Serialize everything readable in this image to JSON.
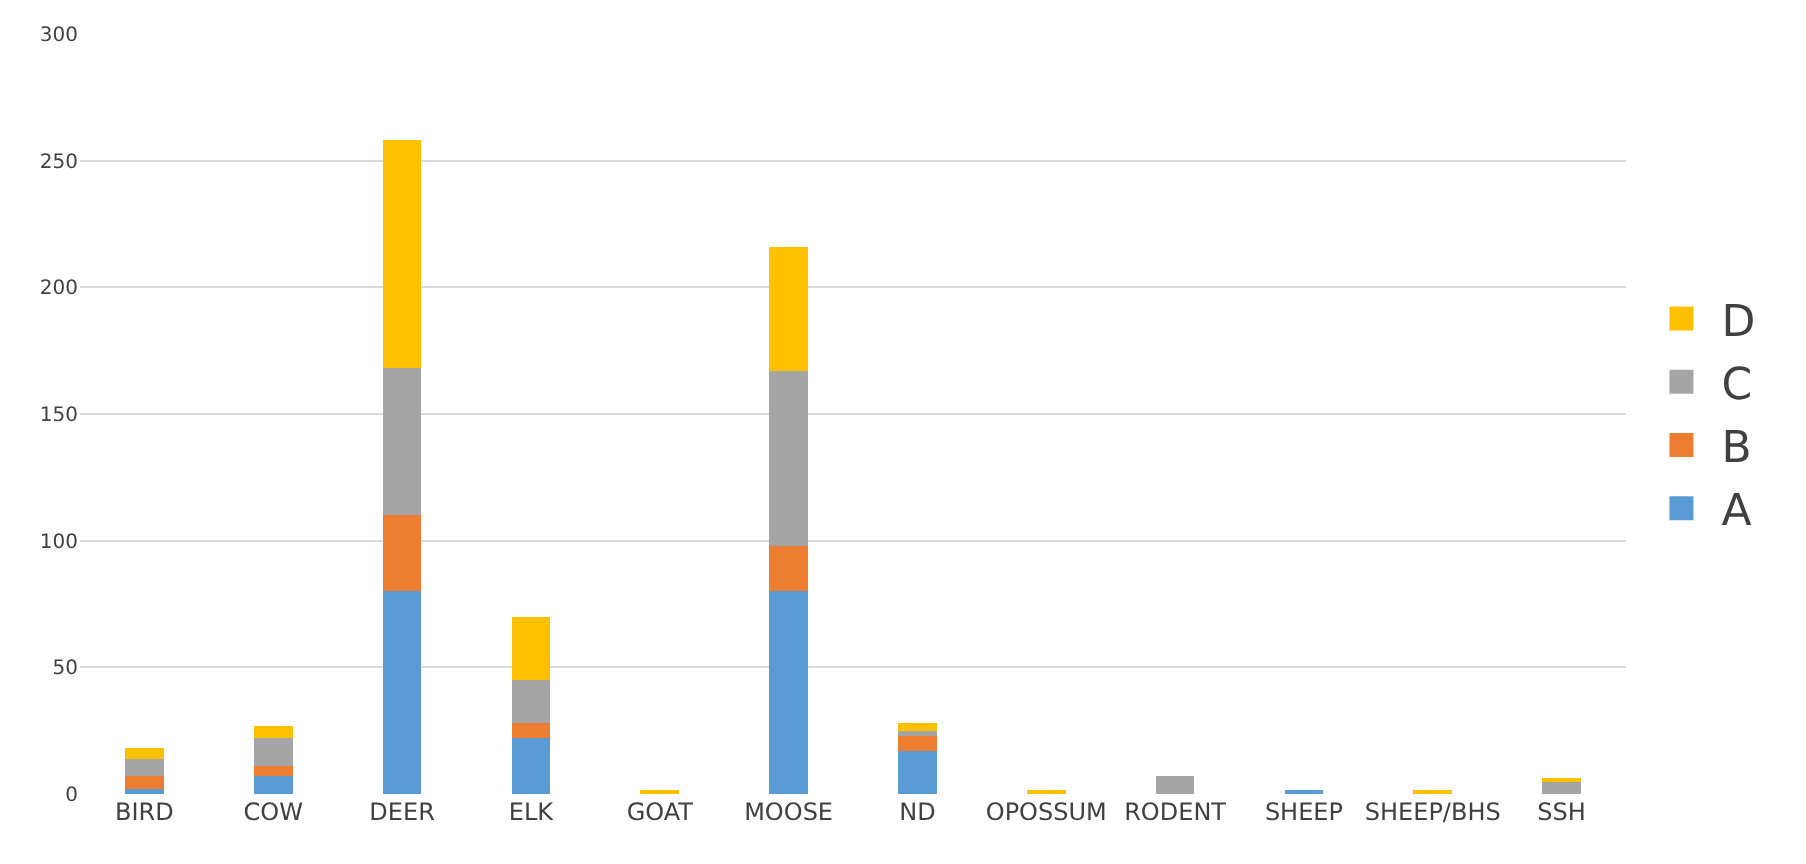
{
  "chart_data": {
    "type": "bar",
    "stacked": true,
    "categories": [
      "BIRD",
      "COW",
      "DEER",
      "ELK",
      "GOAT",
      "MOOSE",
      "ND",
      "OPOSSUM",
      "RODENT",
      "SHEEP",
      "SHEEP/BHS",
      "SSH"
    ],
    "series": [
      {
        "name": "A",
        "color": "#5b9bd5",
        "values": [
          2,
          7,
          80,
          22,
          null,
          80,
          17,
          null,
          null,
          1,
          null,
          null
        ]
      },
      {
        "name": "B",
        "color": "#ed7d31",
        "values": [
          5,
          4,
          30,
          6,
          null,
          18,
          6,
          null,
          null,
          null,
          null,
          null
        ]
      },
      {
        "name": "C",
        "color": "#a5a5a5",
        "values": [
          7,
          11,
          58,
          17,
          null,
          69,
          2,
          null,
          7,
          null,
          null,
          5
        ]
      },
      {
        "name": "D",
        "color": "#ffc000",
        "values": [
          4,
          5,
          90,
          25,
          1,
          49,
          3,
          1,
          null,
          null,
          1,
          1
        ]
      }
    ],
    "ylim": [
      0,
      300
    ],
    "yticks": [
      0,
      50,
      100,
      150,
      200,
      250,
      300
    ],
    "grid": "y",
    "legend": "right"
  }
}
